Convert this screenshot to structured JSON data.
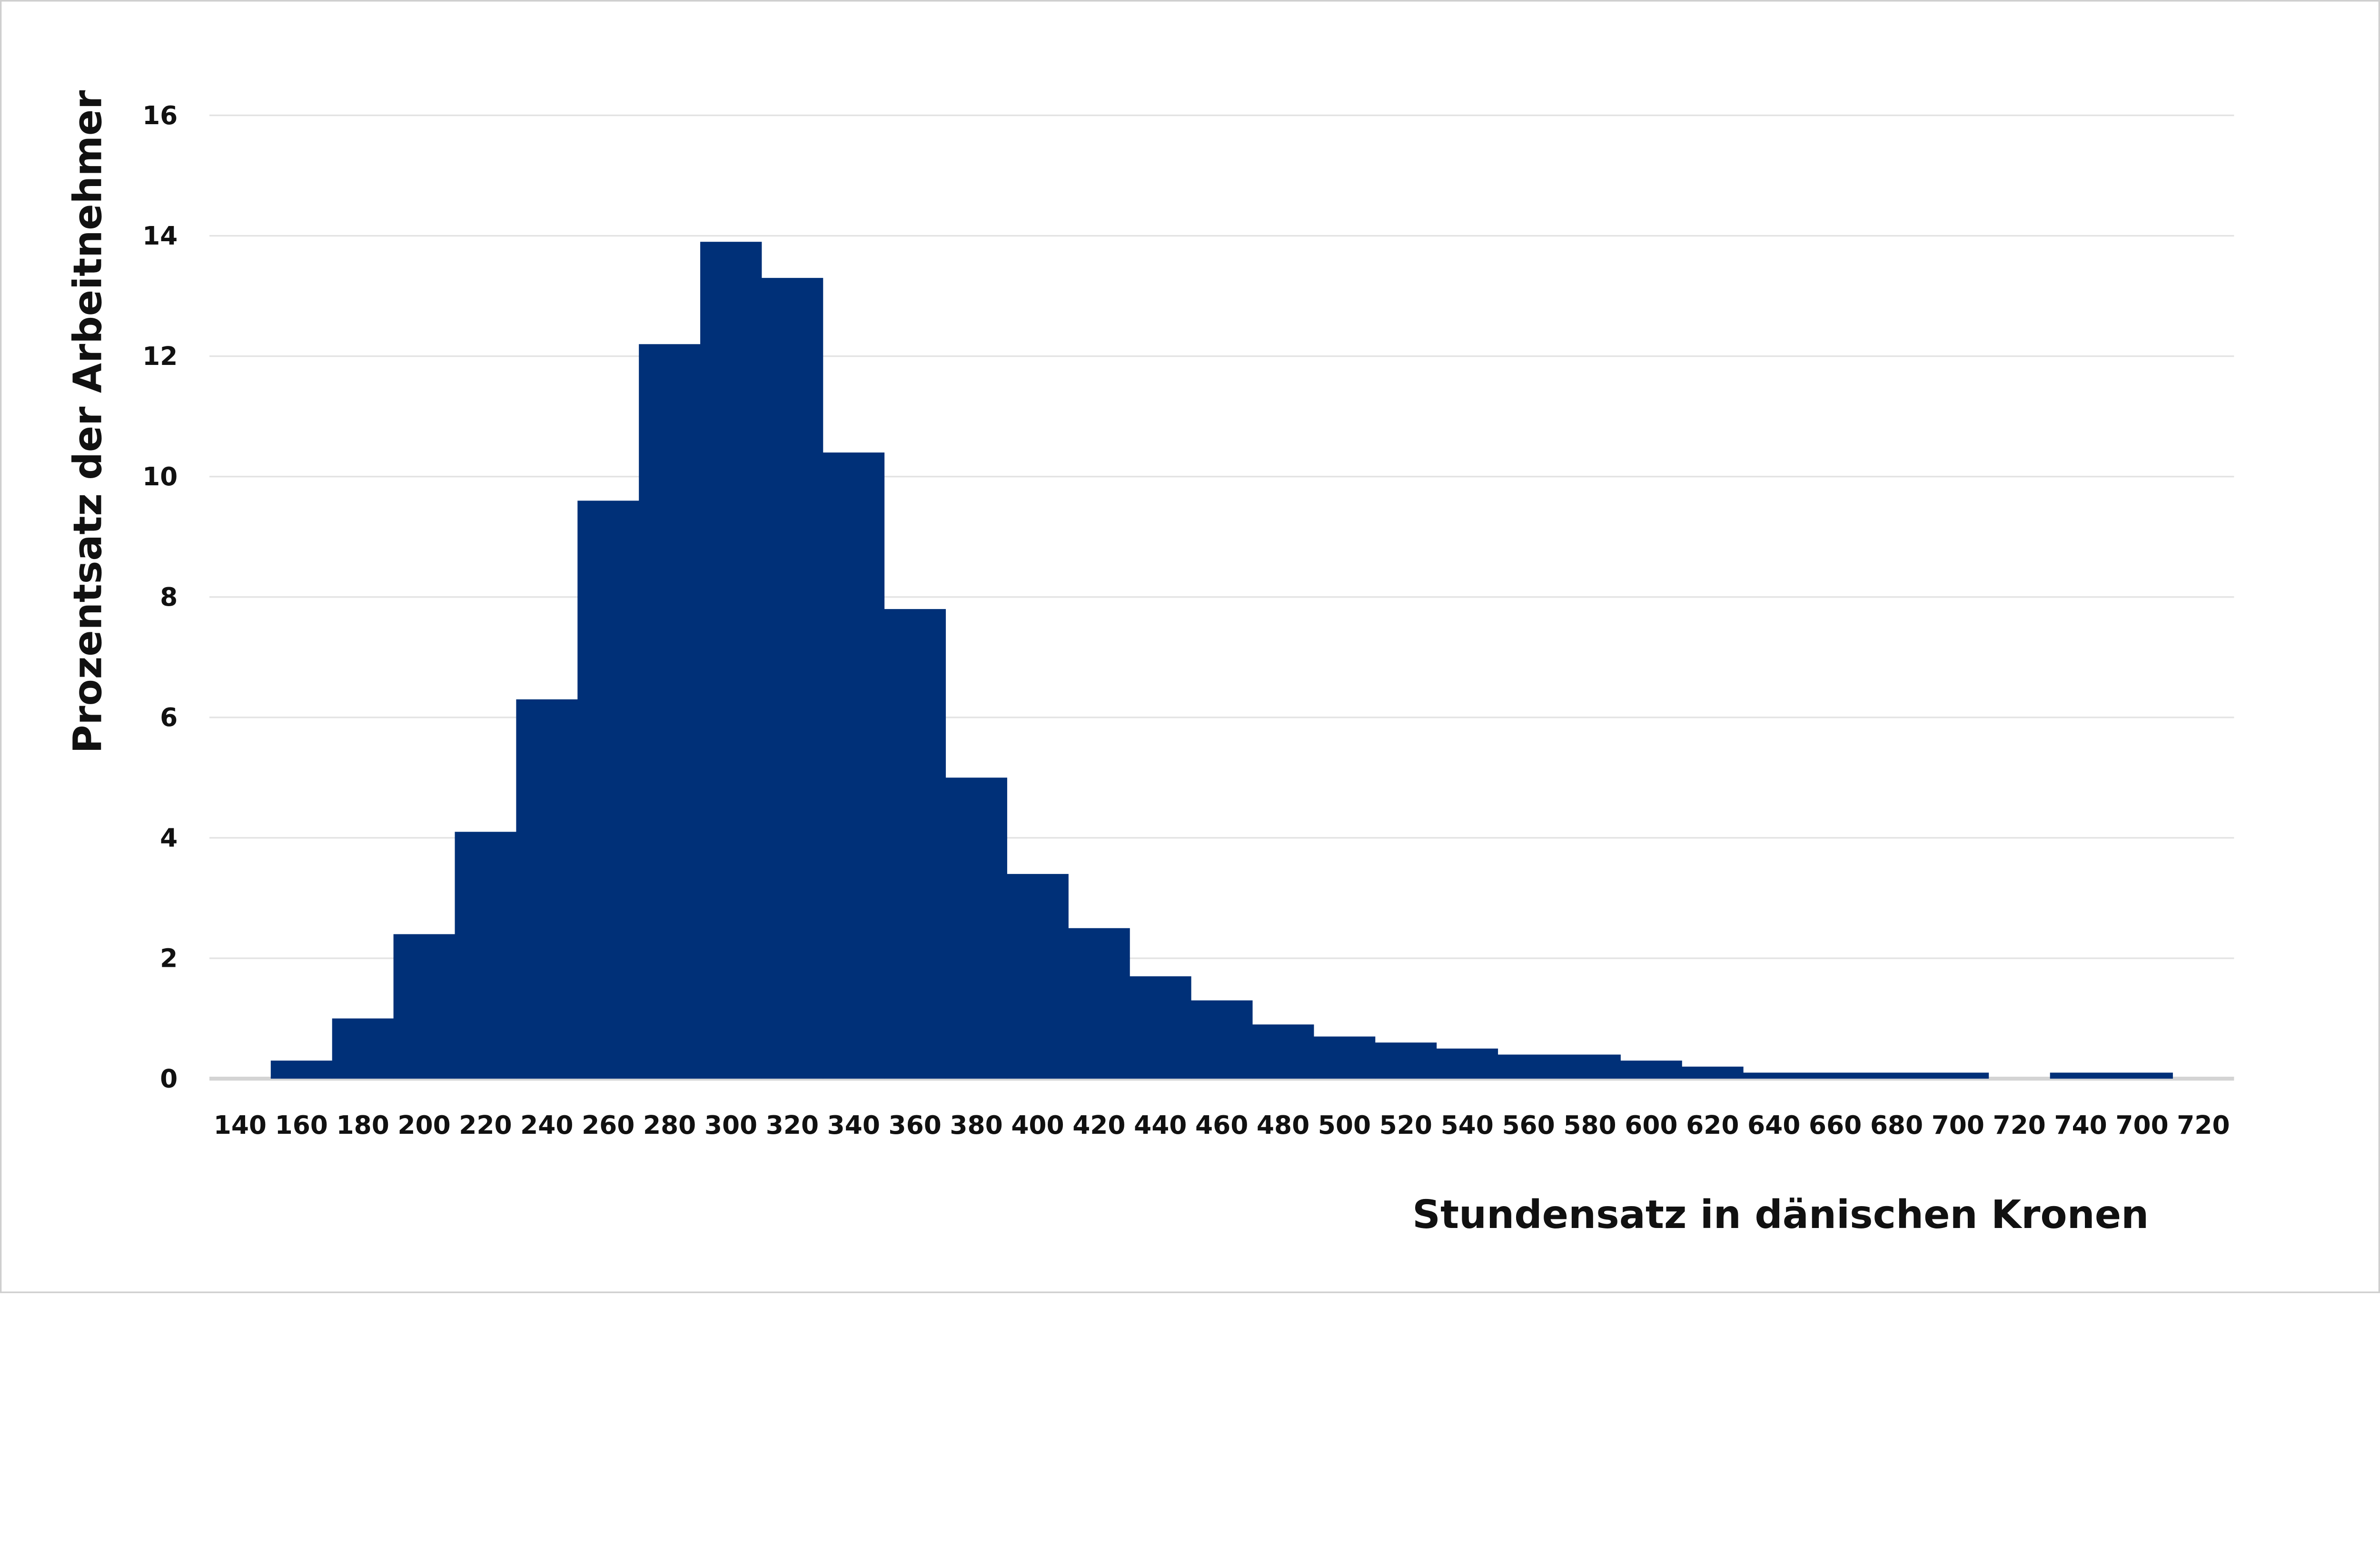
{
  "chart_data": {
    "type": "bar",
    "title": "",
    "xlabel": "Stundensatz in dänischen Kronen",
    "ylabel": "Prozentsatz der Arbeitnehmer",
    "ylim": [
      0,
      16
    ],
    "yticks": [
      "0",
      "2",
      "4",
      "6",
      "8",
      "10",
      "12",
      "14",
      "16"
    ],
    "grid": true,
    "bar_color": "#003078",
    "categories": [
      "140",
      "160",
      "180",
      "200",
      "220",
      "240",
      "260",
      "280",
      "300",
      "320",
      "340",
      "360",
      "380",
      "400",
      "420",
      "440",
      "460",
      "480",
      "500",
      "520",
      "540",
      "560",
      "580",
      "600",
      "620",
      "640",
      "660",
      "680",
      "700",
      "720",
      "740",
      "700",
      "720"
    ],
    "values": [
      0,
      0.3,
      1.0,
      2.4,
      4.1,
      6.3,
      9.6,
      12.2,
      13.9,
      13.3,
      10.4,
      7.8,
      5.0,
      3.4,
      2.5,
      1.7,
      1.3,
      0.9,
      0.7,
      0.6,
      0.5,
      0.4,
      0.4,
      0.3,
      0.2,
      0.1,
      0.1,
      0.1,
      0.1,
      0,
      0.1,
      0.1,
      0
    ]
  }
}
